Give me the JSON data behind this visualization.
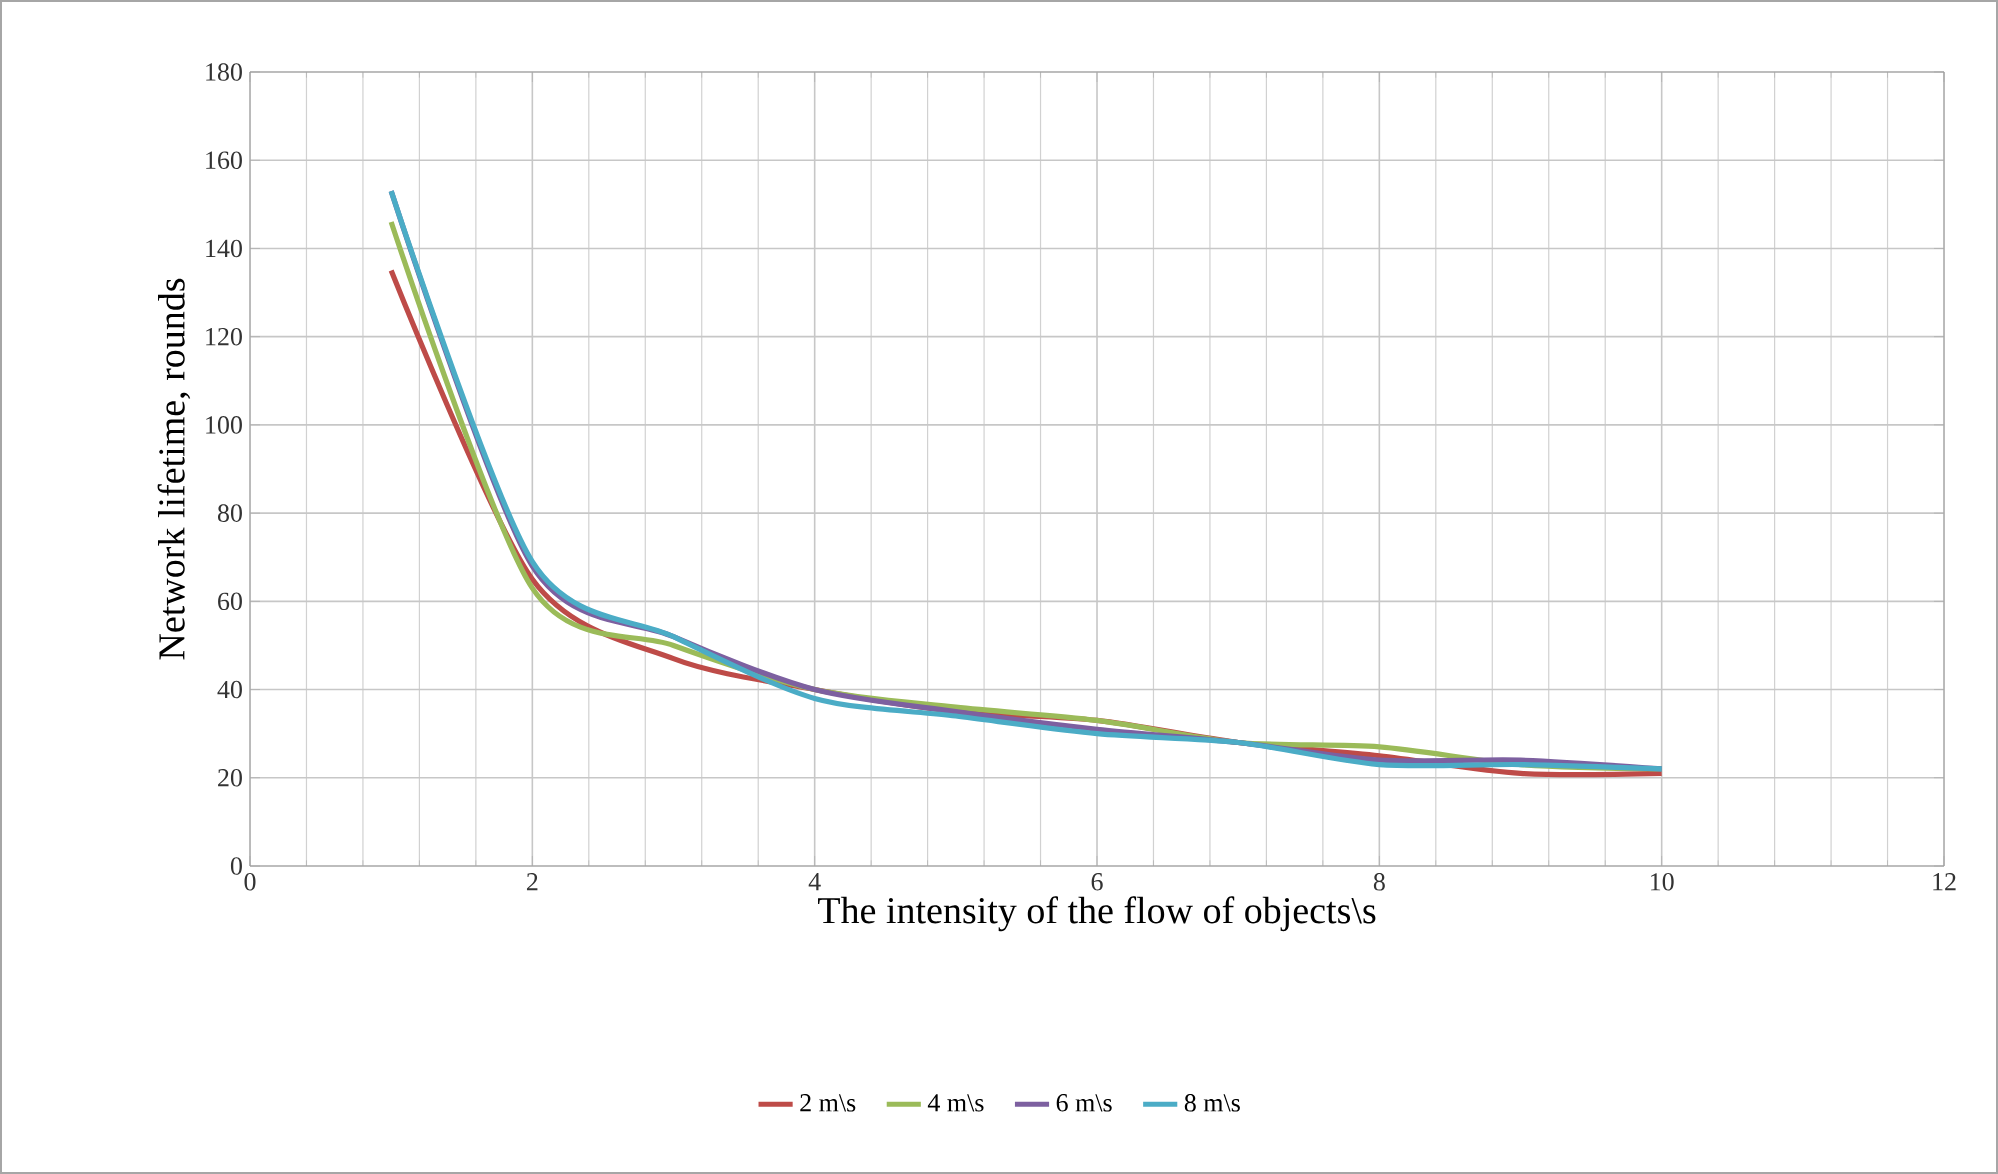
{
  "chart_data": {
    "type": "line",
    "xlabel": "The intensity of the flow of objects\\s",
    "ylabel": "Network lifetime, rounds",
    "x": [
      1,
      2,
      3,
      4,
      5,
      6,
      7,
      8,
      9,
      10
    ],
    "series": [
      {
        "name": "2 m\\s",
        "color": "#be4b48",
        "values": [
          135,
          65,
          47,
          40,
          35,
          33,
          28,
          25,
          21,
          21
        ]
      },
      {
        "name": "4  m\\s",
        "color": "#9bbb59",
        "values": [
          146,
          63,
          50,
          40,
          36,
          33,
          28,
          27,
          23,
          22
        ]
      },
      {
        "name": "6  m\\s",
        "color": "#7d60a0",
        "values": [
          153,
          68,
          52,
          40,
          35,
          31,
          28,
          24,
          24,
          22
        ]
      },
      {
        "name": "8  m\\s",
        "color": "#4bacc6",
        "values": [
          153,
          69,
          52,
          38,
          34,
          30,
          28,
          23,
          23,
          22
        ]
      }
    ],
    "xlim": [
      0,
      12
    ],
    "xticks": [
      0,
      2,
      4,
      6,
      8,
      10,
      12
    ],
    "ylim": [
      0,
      180
    ],
    "yticks": [
      0,
      20,
      40,
      60,
      80,
      100,
      120,
      140,
      160,
      180
    ],
    "grid": true,
    "legend": "bottom",
    "marker": "none",
    "line_style": "solid"
  }
}
